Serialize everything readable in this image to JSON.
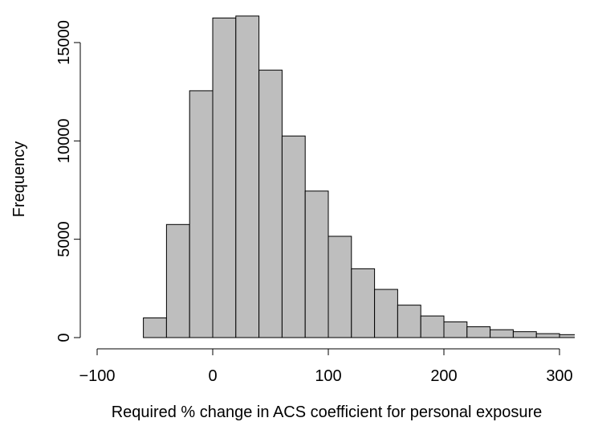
{
  "chart_data": {
    "type": "histogram",
    "xlabel": "Required % change in ACS coefficient for personal exposure",
    "ylabel": "Frequency",
    "bins": [
      -60,
      -40,
      -20,
      0,
      20,
      40,
      60,
      80,
      100,
      120,
      140,
      160,
      180,
      200,
      220,
      240,
      260,
      280,
      300,
      320
    ],
    "values": [
      1000,
      5750,
      12550,
      16250,
      16350,
      13600,
      10250,
      7450,
      5150,
      3500,
      2450,
      1650,
      1100,
      800,
      550,
      400,
      300,
      200,
      150
    ],
    "color": "#bebebe",
    "xlim": [
      -100,
      300
    ],
    "xticks": [
      {
        "value": -100,
        "label": "−100"
      },
      0,
      100,
      200,
      300
    ],
    "ylim": [
      0,
      16400
    ],
    "yticks": [
      0,
      5000,
      10000,
      15000
    ]
  }
}
